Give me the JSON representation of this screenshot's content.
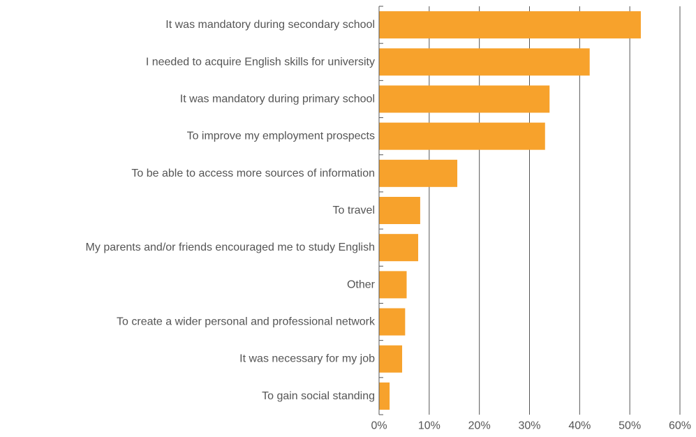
{
  "chart_data": {
    "type": "bar",
    "orientation": "horizontal",
    "title": "",
    "xlabel": "",
    "ylabel": "",
    "categories": [
      "It was mandatory during secondary school",
      "I needed to acquire English skills for university",
      "It was mandatory during primary school",
      "To improve my employment prospects",
      "To be able to access more sources of information",
      "To travel",
      "My parents and/or friends encouraged me to study English",
      "Other",
      "To create a wider personal and professional network",
      "It was necessary for my job",
      "To gain social standing"
    ],
    "values": [
      52.2,
      42.0,
      34.0,
      33.1,
      15.6,
      8.2,
      7.8,
      5.5,
      5.2,
      4.6,
      2.1
    ],
    "value_unit": "%",
    "xlim": [
      0,
      60
    ],
    "xticks": [
      0,
      10,
      20,
      30,
      40,
      50,
      60
    ],
    "xtick_labels": [
      "0%",
      "10%",
      "20%",
      "30%",
      "40%",
      "50%",
      "60%"
    ],
    "grid": true,
    "legend": "none",
    "colors": {
      "bar": "#F7A22C",
      "grid": "#555555",
      "axis": "#555555",
      "text": "#555555"
    }
  }
}
